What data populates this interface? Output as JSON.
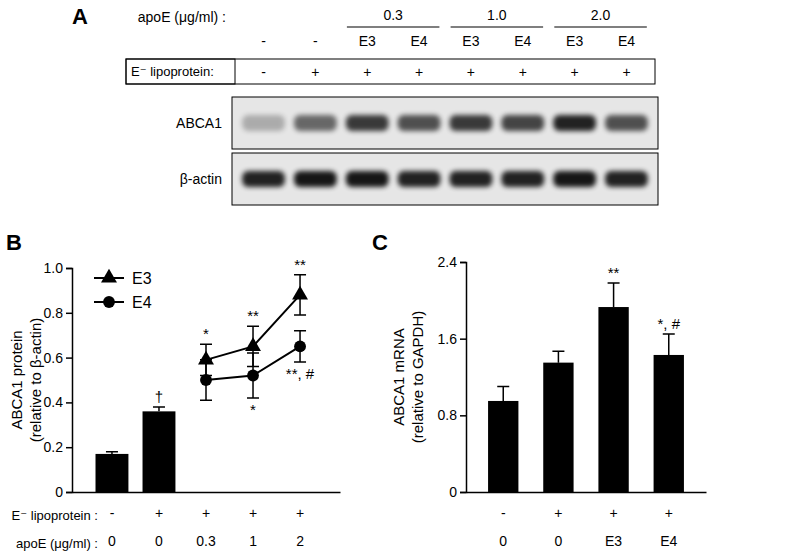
{
  "blot": {
    "panel": "A",
    "apoE_label": "apoE (μg/ml) :",
    "lipoprotein_label": "E⁻ lipoprotein:",
    "lanes": [
      {
        "apoE": "-",
        "lipoprotein": "-",
        "dose": null
      },
      {
        "apoE": "-",
        "lipoprotein": "+",
        "dose": null
      },
      {
        "apoE": "E3",
        "lipoprotein": "+",
        "dose": "0.3"
      },
      {
        "apoE": "E4",
        "lipoprotein": "+",
        "dose": "0.3"
      },
      {
        "apoE": "E3",
        "lipoprotein": "+",
        "dose": "1.0"
      },
      {
        "apoE": "E4",
        "lipoprotein": "+",
        "dose": "1.0"
      },
      {
        "apoE": "E3",
        "lipoprotein": "+",
        "dose": "2.0"
      },
      {
        "apoE": "E4",
        "lipoprotein": "+",
        "dose": "2.0"
      }
    ],
    "rows": [
      {
        "name": "ABCA1",
        "intensity": [
          0.25,
          0.55,
          0.75,
          0.65,
          0.75,
          0.7,
          0.85,
          0.65
        ]
      },
      {
        "name": "β-actin",
        "intensity": [
          0.85,
          0.9,
          0.9,
          0.85,
          0.85,
          0.85,
          0.9,
          0.85
        ]
      }
    ]
  },
  "chart_data": [
    {
      "panel": "B",
      "type": "bar",
      "y_label": [
        "ABCA1 protein",
        "(relative to β-actin)"
      ],
      "category_rows": [
        {
          "name": "E⁻ lipoprotein :",
          "labels": [
            "-",
            "+",
            "+",
            "+",
            "+"
          ]
        },
        {
          "name": "apoE (μg/ml) :",
          "labels": [
            "0",
            "0",
            "0.3",
            "1",
            "2"
          ]
        }
      ],
      "ylim": [
        0,
        1
      ],
      "yticks": [
        0,
        0.2,
        0.4,
        0.6,
        0.8,
        {
          "value": 1,
          "label": "1.0"
        }
      ],
      "legend": "upper left",
      "series": [
        {
          "type": "bar",
          "color": "#000000",
          "values": [
            0.17,
            0.36,
            null,
            null,
            null
          ],
          "errors": [
            0.01,
            0.02,
            null,
            null,
            null
          ],
          "significance": [
            null,
            "†",
            null,
            null,
            null
          ]
        },
        {
          "name": "E3",
          "type": "line",
          "marker": "triangle",
          "color": "#000000",
          "values": [
            null,
            null,
            0.59,
            0.65,
            0.88
          ],
          "errors": [
            null,
            null,
            0.07,
            0.09,
            0.09
          ],
          "significance": [
            null,
            null,
            "*",
            "**",
            "**"
          ]
        },
        {
          "name": "E4",
          "type": "line",
          "marker": "circle",
          "color": "#000000",
          "values": [
            null,
            null,
            0.5,
            0.52,
            0.65
          ],
          "errors": [
            null,
            null,
            0.09,
            0.1,
            0.07
          ],
          "significance": [
            null,
            null,
            null,
            "*",
            "**, #"
          ]
        }
      ]
    },
    {
      "panel": "C",
      "type": "bar",
      "y_label": [
        "ABCA1 mRNA",
        "(relative to GAPDH)"
      ],
      "category_rows": [
        {
          "labels": [
            "-",
            "+",
            "+",
            "+"
          ]
        },
        {
          "labels": [
            "0",
            "0",
            "E3",
            "E4"
          ]
        }
      ],
      "ylim": [
        0,
        2.4
      ],
      "yticks": [
        0,
        0.8,
        1.6,
        2.4
      ],
      "series": [
        {
          "color": "#000000",
          "values": [
            0.95,
            1.35,
            1.93,
            1.43
          ],
          "errors": [
            0.15,
            0.12,
            0.25,
            0.22
          ],
          "significance": [
            null,
            null,
            "**",
            "*, #"
          ]
        }
      ]
    }
  ]
}
